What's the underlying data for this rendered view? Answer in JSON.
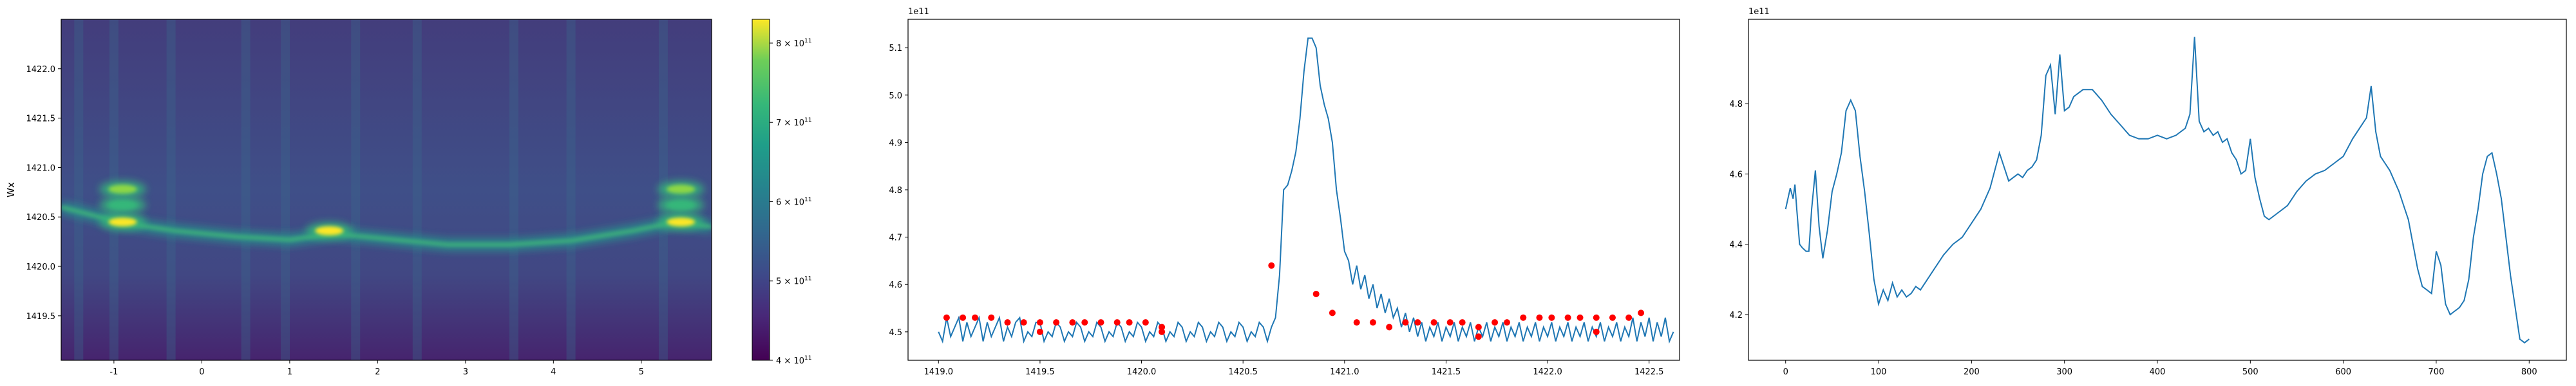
{
  "chart_data": [
    {
      "type": "heatmap",
      "title": "",
      "xlabel": "",
      "ylabel": "Wx",
      "xlim": [
        -1.6,
        5.8
      ],
      "ylim": [
        1419.05,
        1422.5
      ],
      "xticks": [
        -1,
        0,
        1,
        2,
        3,
        4,
        5
      ],
      "yticks": [
        1419.5,
        1420.0,
        1420.5,
        1421.0,
        1421.5,
        1422.0
      ],
      "ytick_labels": [
        "1419.5",
        "1420.0",
        "1420.5",
        "1421.0",
        "1421.5",
        "1422.0"
      ],
      "colormap": "viridis",
      "colorbar": {
        "range": [
          400000000000.0,
          830000000000.0
        ],
        "ticks": [
          400000000000.0,
          500000000000.0,
          600000000000.0,
          700000000000.0,
          800000000000.0
        ],
        "tick_labels": [
          {
            "base": "4 × 10",
            "exp": "11"
          },
          {
            "base": "5 × 10",
            "exp": "11"
          },
          {
            "base": "6 × 10",
            "exp": "11"
          },
          {
            "base": "7 × 10",
            "exp": "11"
          },
          {
            "base": "8 × 10",
            "exp": "11"
          }
        ]
      },
      "ridge": [
        {
          "x": -1.6,
          "y": 1420.6
        },
        {
          "x": -0.9,
          "y": 1420.44
        },
        {
          "x": -0.3,
          "y": 1420.36
        },
        {
          "x": 0.4,
          "y": 1420.3
        },
        {
          "x": 1.0,
          "y": 1420.27
        },
        {
          "x": 1.5,
          "y": 1420.33
        },
        {
          "x": 2.2,
          "y": 1420.27
        },
        {
          "x": 2.8,
          "y": 1420.22
        },
        {
          "x": 3.5,
          "y": 1420.22
        },
        {
          "x": 4.2,
          "y": 1420.26
        },
        {
          "x": 4.9,
          "y": 1420.36
        },
        {
          "x": 5.4,
          "y": 1420.45
        },
        {
          "x": 5.8,
          "y": 1420.4
        }
      ],
      "hot_spots": [
        {
          "x": -0.9,
          "y": 1420.45,
          "value": 830000000000.0
        },
        {
          "x": -0.9,
          "y": 1420.78,
          "value": 680000000000.0
        },
        {
          "x": -0.9,
          "y": 1420.62,
          "value": 650000000000.0
        },
        {
          "x": 1.45,
          "y": 1420.36,
          "value": 820000000000.0
        },
        {
          "x": 5.45,
          "y": 1420.45,
          "value": 830000000000.0
        },
        {
          "x": 5.45,
          "y": 1420.78,
          "value": 680000000000.0
        },
        {
          "x": 5.45,
          "y": 1420.62,
          "value": 650000000000.0
        }
      ],
      "vertical_bands": [
        -1.4,
        -1.0,
        -0.35,
        0.5,
        0.95,
        1.75,
        2.45,
        3.55,
        4.2,
        5.25
      ]
    },
    {
      "type": "line",
      "title": "",
      "offset_text": "1e11",
      "xlim": [
        1418.85,
        1422.65
      ],
      "ylim": [
        4.44,
        5.16
      ],
      "xticks": [
        1419.0,
        1419.5,
        1420.0,
        1420.5,
        1421.0,
        1421.5,
        1422.0,
        1422.5
      ],
      "xtick_labels": [
        "1419.0",
        "1419.5",
        "1420.0",
        "1420.5",
        "1421.0",
        "1421.5",
        "1422.0",
        "1422.5"
      ],
      "yticks": [
        4.5,
        4.6,
        4.7,
        4.8,
        4.9,
        5.0,
        5.1
      ],
      "ytick_labels": [
        "4.5",
        "4.6",
        "4.7",
        "4.8",
        "4.9",
        "5.0",
        "5.1"
      ],
      "series": [
        {
          "x_start": 1419.0,
          "x_step": 0.02,
          "values": [
            4.5,
            4.48,
            4.53,
            4.49,
            4.51,
            4.53,
            4.48,
            4.52,
            4.49,
            4.51,
            4.53,
            4.48,
            4.52,
            4.49,
            4.51,
            4.53,
            4.48,
            4.51,
            4.49,
            4.52,
            4.53,
            4.48,
            4.5,
            4.49,
            4.52,
            4.52,
            4.48,
            4.5,
            4.49,
            4.52,
            4.51,
            4.48,
            4.5,
            4.49,
            4.52,
            4.51,
            4.48,
            4.5,
            4.49,
            4.52,
            4.51,
            4.48,
            4.5,
            4.49,
            4.52,
            4.51,
            4.48,
            4.5,
            4.49,
            4.52,
            4.51,
            4.48,
            4.5,
            4.49,
            4.52,
            4.51,
            4.48,
            4.5,
            4.49,
            4.52,
            4.51,
            4.48,
            4.5,
            4.49,
            4.52,
            4.51,
            4.48,
            4.5,
            4.49,
            4.52,
            4.51,
            4.48,
            4.5,
            4.49,
            4.52,
            4.51,
            4.48,
            4.5,
            4.49,
            4.52,
            4.51,
            4.48,
            4.51,
            4.53,
            4.62,
            4.8,
            4.81,
            4.84,
            4.88,
            4.95,
            5.05,
            5.12,
            5.12,
            5.1,
            5.02,
            4.98,
            4.95,
            4.9,
            4.8,
            4.74,
            4.67,
            4.65,
            4.6,
            4.64,
            4.59,
            4.62,
            4.57,
            4.6,
            4.55,
            4.58,
            4.54,
            4.57,
            4.53,
            4.55,
            4.51,
            4.54,
            4.5,
            4.53,
            4.49,
            4.52,
            4.48,
            4.51,
            4.49,
            4.52,
            4.48,
            4.51,
            4.49,
            4.52,
            4.48,
            4.51,
            4.49,
            4.52,
            4.48,
            4.51,
            4.49,
            4.52,
            4.48,
            4.51,
            4.49,
            4.52,
            4.48,
            4.51,
            4.49,
            4.52,
            4.48,
            4.51,
            4.49,
            4.52,
            4.48,
            4.51,
            4.49,
            4.52,
            4.48,
            4.51,
            4.49,
            4.52,
            4.48,
            4.51,
            4.49,
            4.52,
            4.48,
            4.51,
            4.49,
            4.52,
            4.48,
            4.51,
            4.49,
            4.52,
            4.48,
            4.51,
            4.49,
            4.53,
            4.48,
            4.52,
            4.49,
            4.53,
            4.48,
            4.52,
            4.49,
            4.53,
            4.48,
            4.5
          ]
        }
      ],
      "peaks": [
        {
          "x": 1419.04,
          "y": 4.53
        },
        {
          "x": 1419.12,
          "y": 4.53
        },
        {
          "x": 1419.18,
          "y": 4.53
        },
        {
          "x": 1419.26,
          "y": 4.53
        },
        {
          "x": 1419.34,
          "y": 4.52
        },
        {
          "x": 1419.42,
          "y": 4.52
        },
        {
          "x": 1419.5,
          "y": 4.52
        },
        {
          "x": 1419.58,
          "y": 4.52
        },
        {
          "x": 1419.66,
          "y": 4.52
        },
        {
          "x": 1419.72,
          "y": 4.52
        },
        {
          "x": 1419.8,
          "y": 4.52
        },
        {
          "x": 1419.88,
          "y": 4.52
        },
        {
          "x": 1419.94,
          "y": 4.52
        },
        {
          "x": 1420.02,
          "y": 4.52
        },
        {
          "x": 1420.1,
          "y": 4.51
        },
        {
          "x": 1420.64,
          "y": 4.64
        },
        {
          "x": 1420.86,
          "y": 4.58
        },
        {
          "x": 1420.94,
          "y": 4.54
        },
        {
          "x": 1421.06,
          "y": 4.52
        },
        {
          "x": 1421.14,
          "y": 4.52
        },
        {
          "x": 1421.22,
          "y": 4.51
        },
        {
          "x": 1421.3,
          "y": 4.52
        },
        {
          "x": 1421.36,
          "y": 4.52
        },
        {
          "x": 1421.44,
          "y": 4.52
        },
        {
          "x": 1421.52,
          "y": 4.52
        },
        {
          "x": 1421.58,
          "y": 4.52
        },
        {
          "x": 1421.66,
          "y": 4.51
        },
        {
          "x": 1421.74,
          "y": 4.52
        },
        {
          "x": 1421.8,
          "y": 4.52
        },
        {
          "x": 1421.88,
          "y": 4.53
        },
        {
          "x": 1421.96,
          "y": 4.53
        },
        {
          "x": 1422.02,
          "y": 4.53
        },
        {
          "x": 1422.1,
          "y": 4.53
        },
        {
          "x": 1422.16,
          "y": 4.53
        },
        {
          "x": 1422.24,
          "y": 4.53
        },
        {
          "x": 1422.32,
          "y": 4.53
        },
        {
          "x": 1422.4,
          "y": 4.53
        },
        {
          "x": 1422.46,
          "y": 4.54
        },
        {
          "x": 1419.5,
          "y": 4.5
        },
        {
          "x": 1420.1,
          "y": 4.5
        },
        {
          "x": 1421.66,
          "y": 4.49
        },
        {
          "x": 1422.24,
          "y": 4.5
        }
      ]
    },
    {
      "type": "line",
      "title": "",
      "offset_text": "1e11",
      "xlim": [
        -40,
        840
      ],
      "ylim": [
        4.07,
        5.04
      ],
      "xticks": [
        0,
        100,
        200,
        300,
        400,
        500,
        600,
        700,
        800
      ],
      "xtick_labels": [
        "0",
        "100",
        "200",
        "300",
        "400",
        "500",
        "600",
        "700",
        "800"
      ],
      "yticks": [
        4.2,
        4.4,
        4.6,
        4.8
      ],
      "ytick_labels": [
        "4.2",
        "4.4",
        "4.6",
        "4.8"
      ],
      "series": [
        {
          "x": [
            0,
            5,
            8,
            10,
            12,
            15,
            18,
            22,
            25,
            28,
            32,
            36,
            40,
            45,
            50,
            55,
            60,
            65,
            70,
            75,
            80,
            85,
            90,
            95,
            100,
            105,
            110,
            115,
            120,
            125,
            130,
            135,
            140,
            145,
            150,
            160,
            170,
            180,
            190,
            200,
            210,
            220,
            230,
            240,
            250,
            255,
            260,
            265,
            270,
            275,
            280,
            285,
            290,
            295,
            300,
            305,
            310,
            320,
            330,
            340,
            350,
            360,
            370,
            380,
            390,
            400,
            410,
            420,
            430,
            435,
            440,
            445,
            450,
            455,
            460,
            465,
            470,
            475,
            480,
            485,
            490,
            495,
            500,
            505,
            510,
            515,
            520,
            530,
            540,
            550,
            560,
            570,
            580,
            590,
            600,
            610,
            620,
            625,
            630,
            635,
            640,
            645,
            650,
            655,
            660,
            665,
            670,
            675,
            680,
            685,
            690,
            695,
            700,
            705,
            710,
            715,
            720,
            725,
            730,
            735,
            740,
            745,
            750,
            755,
            760,
            765,
            770,
            775,
            780,
            785,
            790,
            795,
            800
          ],
          "values": [
            4.5,
            4.56,
            4.53,
            4.57,
            4.5,
            4.4,
            4.39,
            4.38,
            4.38,
            4.5,
            4.61,
            4.45,
            4.36,
            4.44,
            4.55,
            4.6,
            4.66,
            4.78,
            4.81,
            4.78,
            4.65,
            4.55,
            4.43,
            4.3,
            4.23,
            4.27,
            4.24,
            4.29,
            4.25,
            4.27,
            4.25,
            4.26,
            4.28,
            4.27,
            4.29,
            4.33,
            4.37,
            4.4,
            4.42,
            4.46,
            4.5,
            4.56,
            4.66,
            4.58,
            4.6,
            4.59,
            4.61,
            4.62,
            4.64,
            4.71,
            4.88,
            4.91,
            4.77,
            4.94,
            4.78,
            4.79,
            4.82,
            4.84,
            4.84,
            4.81,
            4.77,
            4.74,
            4.71,
            4.7,
            4.7,
            4.71,
            4.7,
            4.71,
            4.73,
            4.77,
            4.99,
            4.75,
            4.72,
            4.73,
            4.71,
            4.72,
            4.69,
            4.7,
            4.66,
            4.64,
            4.6,
            4.61,
            4.7,
            4.59,
            4.53,
            4.48,
            4.47,
            4.49,
            4.51,
            4.55,
            4.58,
            4.6,
            4.61,
            4.63,
            4.65,
            4.7,
            4.74,
            4.76,
            4.85,
            4.72,
            4.65,
            4.63,
            4.61,
            4.58,
            4.55,
            4.51,
            4.47,
            4.4,
            4.33,
            4.28,
            4.27,
            4.26,
            4.38,
            4.34,
            4.23,
            4.2,
            4.21,
            4.22,
            4.24,
            4.3,
            4.42,
            4.5,
            4.6,
            4.65,
            4.66,
            4.6,
            4.53,
            4.42,
            4.31,
            4.22,
            4.13,
            4.12,
            4.13
          ]
        }
      ]
    }
  ]
}
